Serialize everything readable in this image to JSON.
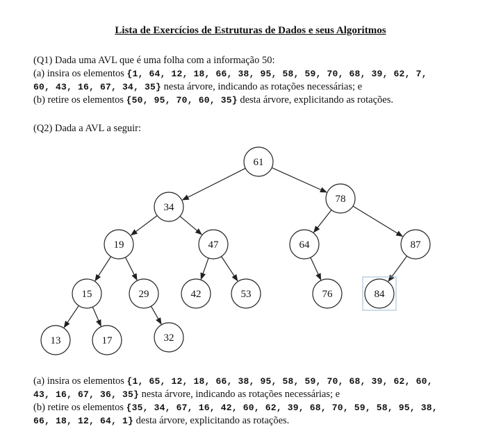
{
  "title": "Lista de Exercícios de Estruturas de Dados e seus Algoritmos",
  "q1": {
    "intro": "(Q1) Dada uma AVL que é uma folha com a informação 50:",
    "a_prefix": "(a)  insira os elementos ",
    "a_list_1": "{1, 64, 12, 18, 66, 38, 95, 58, 59, 70, 68, 39, 62, 7,",
    "a_list_2": "60, 43, 16, 67, 34, 35}",
    "a_suffix": " nesta árvore, indicando as rotações necessárias; e",
    "b_prefix": "(b) retire os elementos ",
    "b_list": "{50, 95, 70, 60, 35}",
    "b_suffix": " desta árvore, explicitando as rotações."
  },
  "q2": {
    "intro": "(Q2) Dada a AVL a seguir:",
    "a_prefix": "(a) insira os elementos ",
    "a_list_1": "{1, 65, 12, 18, 66, 38, 95, 58, 59, 70, 68, 39, 62, 60,",
    "a_list_2": "43, 16, 67, 36, 35}",
    "a_suffix": " nesta árvore, indicando as rotações necessárias; e",
    "b_prefix": "(b) retire os elementos ",
    "b_list_1": "{35, 34, 67, 16, 42, 60, 62, 39, 68, 70, 59, 58, 95, 38,",
    "b_list_2": "66, 18, 12, 64, 1}",
    "b_suffix": " desta árvore, explicitando as rotações."
  },
  "tree": {
    "nodes": [
      "61",
      "34",
      "78",
      "19",
      "47",
      "64",
      "87",
      "15",
      "29",
      "42",
      "53",
      "76",
      "84",
      "13",
      "17",
      "32"
    ],
    "edges": [
      [
        "61",
        "34"
      ],
      [
        "61",
        "78"
      ],
      [
        "34",
        "19"
      ],
      [
        "34",
        "47"
      ],
      [
        "78",
        "64"
      ],
      [
        "78",
        "87"
      ],
      [
        "19",
        "15"
      ],
      [
        "19",
        "29"
      ],
      [
        "47",
        "42"
      ],
      [
        "47",
        "53"
      ],
      [
        "64",
        "76"
      ],
      [
        "87",
        "84"
      ],
      [
        "15",
        "13"
      ],
      [
        "15",
        "17"
      ],
      [
        "29",
        "32"
      ]
    ],
    "highlighted": "84",
    "highlight_color": "#9ab8d8"
  }
}
